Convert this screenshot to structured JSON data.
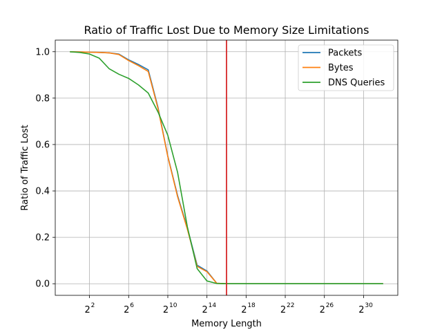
{
  "chart_data": {
    "type": "line",
    "title": "Ratio of Traffic Lost Due to Memory Size Limitations",
    "xlabel": "Memory Length",
    "ylabel": "Ratio of Traffic Lost",
    "x_scale": "log2",
    "xlim_log2": [
      -1.5,
      33.5
    ],
    "ylim": [
      -0.05,
      1.05
    ],
    "grid": true,
    "legend_position": "top-right",
    "x_ticks": [
      {
        "base": "2",
        "exp": "2",
        "log2": 2
      },
      {
        "base": "2",
        "exp": "6",
        "log2": 6
      },
      {
        "base": "2",
        "exp": "10",
        "log2": 10
      },
      {
        "base": "2",
        "exp": "14",
        "log2": 14
      },
      {
        "base": "2",
        "exp": "18",
        "log2": 18
      },
      {
        "base": "2",
        "exp": "22",
        "log2": 22
      },
      {
        "base": "2",
        "exp": "26",
        "log2": 26
      },
      {
        "base": "2",
        "exp": "30",
        "log2": 30
      }
    ],
    "y_ticks": [
      {
        "value": 0.0,
        "label": "0.0"
      },
      {
        "value": 0.2,
        "label": "0.2"
      },
      {
        "value": 0.4,
        "label": "0.4"
      },
      {
        "value": 0.6,
        "label": "0.6"
      },
      {
        "value": 0.8,
        "label": "0.8"
      },
      {
        "value": 1.0,
        "label": "1.0"
      }
    ],
    "vertical_line": {
      "log2": 16,
      "color": "#d62728"
    },
    "x_log2": [
      0,
      1,
      2,
      3,
      4,
      5,
      6,
      7,
      8,
      9,
      10,
      11,
      12,
      13,
      14,
      15,
      16,
      17,
      18,
      19,
      20,
      21,
      22,
      23,
      24,
      25,
      26,
      27,
      28,
      29,
      30,
      31,
      32
    ],
    "series": [
      {
        "name": "Packets",
        "color": "#1f77b4",
        "values": [
          1.0,
          0.999,
          0.998,
          0.997,
          0.995,
          0.99,
          0.965,
          0.945,
          0.922,
          0.76,
          0.55,
          0.38,
          0.24,
          0.08,
          0.055,
          0.002,
          0.0,
          0.0,
          0.0,
          0.0,
          0.0,
          0.0,
          0.0,
          0.0,
          0.0,
          0.0,
          0.0,
          0.0,
          0.0,
          0.0,
          0.0,
          0.0,
          0.0
        ]
      },
      {
        "name": "Bytes",
        "color": "#ff7f0e",
        "values": [
          1.0,
          0.999,
          0.998,
          0.997,
          0.995,
          0.988,
          0.962,
          0.94,
          0.915,
          0.755,
          0.548,
          0.375,
          0.235,
          0.075,
          0.052,
          0.002,
          0.0,
          0.0,
          0.0,
          0.0,
          0.0,
          0.0,
          0.0,
          0.0,
          0.0,
          0.0,
          0.0,
          0.0,
          0.0,
          0.0,
          0.0,
          0.0,
          0.0
        ]
      },
      {
        "name": "DNS Queries",
        "color": "#2ca02c",
        "values": [
          1.0,
          0.997,
          0.99,
          0.972,
          0.927,
          0.903,
          0.885,
          0.857,
          0.822,
          0.74,
          0.64,
          0.48,
          0.245,
          0.065,
          0.012,
          0.001,
          0.0,
          0.0,
          0.0,
          0.0,
          0.0,
          0.0,
          0.0,
          0.0,
          0.0,
          0.0,
          0.0,
          0.0,
          0.0,
          0.0,
          0.0,
          0.0,
          0.0
        ]
      }
    ]
  }
}
